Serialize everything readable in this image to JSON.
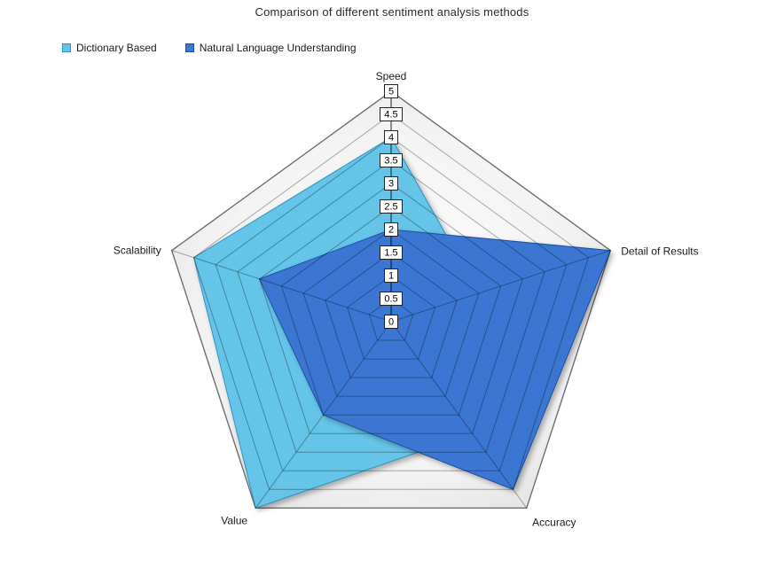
{
  "title": "Comparison of different sentiment analysis methods",
  "chart_data": {
    "type": "radar",
    "title": "Comparison of different sentiment analysis methods",
    "categories": [
      "Speed",
      "Detail of Results",
      "Accuracy",
      "Value",
      "Scalability"
    ],
    "series": [
      {
        "name": "Dictionary Based",
        "values": [
          4,
          2,
          3,
          5,
          4.5
        ],
        "fill": "#64C5E8",
        "stroke": "#2f93c2"
      },
      {
        "name": "Natural Language Understanding",
        "values": [
          2,
          5,
          4.5,
          2.5,
          3
        ],
        "fill": "#3B77D2",
        "stroke": "#1c4f9e"
      }
    ],
    "ticks": [
      "0",
      "0.5",
      "1",
      "1.5",
      "2",
      "2.5",
      "3",
      "3.5",
      "4",
      "4.5",
      "5"
    ],
    "axis_min": 0,
    "axis_max": 5,
    "grid": true,
    "legend_position": "top-left",
    "colors": {
      "grid_line": "#000000",
      "plot_bg_inner": "#ffffff",
      "plot_bg_outer": "#e2e2e2",
      "outer_border": "#999999",
      "tick_box_bg": "#ffffff",
      "tick_box_border": "#222222",
      "label_text": "#1a1a1a"
    }
  }
}
